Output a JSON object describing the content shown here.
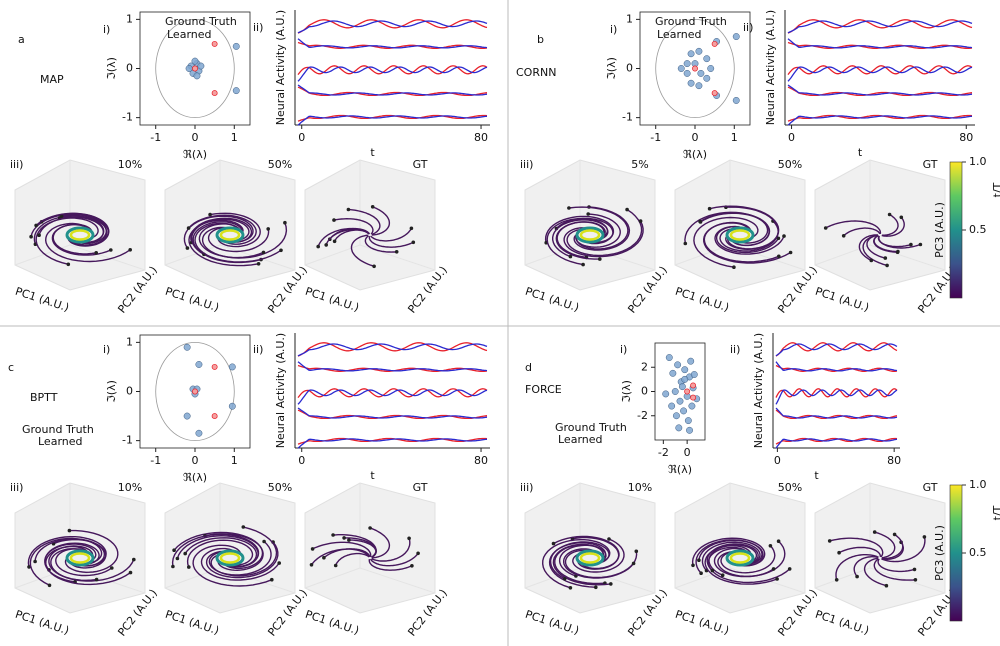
{
  "panels": [
    {
      "label": "a",
      "method": "MAP",
      "eigen": {
        "tag": "i)",
        "xlabel": "ℜ(λ)",
        "ylabel": "ℑ(λ)",
        "xlim": [
          -1.4,
          1.4
        ],
        "ylim": [
          -1.15,
          1.15
        ],
        "xticks": [
          -1,
          0,
          1
        ],
        "yticks": [
          -1,
          0,
          1
        ],
        "unit_circle_radius": 1,
        "legend": [
          "Ground Truth",
          "Learned"
        ],
        "ground_truth": {
          "x": [
            0,
            0.5,
            0.5
          ],
          "y": [
            0,
            0.5,
            -0.5
          ]
        },
        "learned": {
          "x": [
            -0.1,
            0.05,
            0.1,
            -0.05,
            0,
            0.15,
            -0.15,
            0.05,
            1.05,
            1.05
          ],
          "y": [
            0.05,
            0.1,
            -0.05,
            -0.1,
            0.15,
            0.05,
            0,
            -0.15,
            0.45,
            -0.45
          ]
        }
      },
      "activity": {
        "tag": "ii)",
        "ylabel": "Neural Activity (A.U.)",
        "xlabel": "t",
        "xlim": [
          -3,
          84
        ],
        "xticks": [
          0,
          80
        ]
      },
      "trajectories": {
        "tag": "iii)",
        "views": [
          "10%",
          "50%",
          "GT"
        ],
        "xlabel": "PC1 (A.U.)",
        "ylabel": "PC2 (A.U.)"
      }
    },
    {
      "label": "b",
      "method": "CORNN",
      "eigen": {
        "tag": "i)",
        "xlabel": "ℜ(λ)",
        "ylabel": "ℑ(λ)",
        "xlim": [
          -1.4,
          1.4
        ],
        "ylim": [
          -1.15,
          1.15
        ],
        "xticks": [
          -1,
          0,
          1
        ],
        "yticks": [
          -1,
          0,
          1
        ],
        "unit_circle_radius": 1,
        "legend": [
          "Ground Truth",
          "Learned"
        ],
        "ground_truth": {
          "x": [
            0,
            0.5,
            0.5
          ],
          "y": [
            0,
            0.5,
            -0.5
          ]
        },
        "learned": {
          "x": [
            -0.35,
            -0.2,
            -0.1,
            0.1,
            0.3,
            0.4,
            0.3,
            0.1,
            -0.1,
            -0.2,
            0,
            0.15,
            1.05,
            1.05,
            0.55,
            0.55
          ],
          "y": [
            0,
            0.1,
            0.3,
            0.35,
            0.2,
            0,
            -0.2,
            -0.35,
            -0.3,
            -0.1,
            0.1,
            -0.1,
            0.65,
            -0.65,
            0.55,
            -0.55
          ]
        }
      },
      "activity": {
        "tag": "ii)",
        "ylabel": "Neural Activity (A.U.)",
        "xlabel": "t",
        "xlim": [
          -3,
          84
        ],
        "xticks": [
          0,
          80
        ]
      },
      "trajectories": {
        "tag": "iii)",
        "views": [
          "5%",
          "50%",
          "GT"
        ],
        "xlabel": "PC1 (A.U.)",
        "ylabel": "PC2 (A.U.)"
      }
    },
    {
      "label": "c",
      "method": "BPTT",
      "eigen": {
        "tag": "i)",
        "xlabel": "ℜ(λ)",
        "ylabel": "ℑ(λ)",
        "xlim": [
          -1.4,
          1.4
        ],
        "ylim": [
          -1.15,
          1.15
        ],
        "xticks": [
          -1,
          0,
          1
        ],
        "yticks": [
          -1,
          0,
          1
        ],
        "unit_circle_radius": 1,
        "legend": [
          "Ground Truth",
          "Learned"
        ],
        "ground_truth": {
          "x": [
            0,
            0.5,
            0.5
          ],
          "y": [
            0,
            0.5,
            -0.5
          ]
        },
        "learned": {
          "x": [
            -0.05,
            0.05,
            0,
            -0.2,
            0.1,
            0.95,
            -0.2,
            0.1,
            0.95
          ],
          "y": [
            0.05,
            0.05,
            -0.05,
            0.9,
            0.55,
            0.5,
            -0.5,
            -0.85,
            -0.3
          ]
        }
      },
      "activity": {
        "tag": "ii)",
        "ylabel": "Neural Activity (A.U.)",
        "xlabel": "t",
        "xlim": [
          -3,
          84
        ],
        "xticks": [
          0,
          80
        ]
      },
      "trajectories": {
        "tag": "iii)",
        "views": [
          "10%",
          "50%",
          "GT"
        ],
        "xlabel": "PC1 (A.U.)",
        "ylabel": "PC2 (A.U.)"
      }
    },
    {
      "label": "d",
      "method": "FORCE",
      "eigen": {
        "tag": "i)",
        "xlabel": "ℜ(λ)",
        "ylabel": "ℑ(λ)",
        "xlim": [
          -2.7,
          1.5
        ],
        "ylim": [
          -4,
          4
        ],
        "xticks": [
          -2,
          0
        ],
        "yticks": [
          -2,
          0,
          2
        ],
        "legend": [
          "Ground Truth",
          "Learned"
        ],
        "ground_truth": {
          "x": [
            0.5,
            0.5,
            0
          ],
          "y": [
            0.5,
            -0.5,
            0
          ]
        },
        "learned": {
          "x": [
            -1.5,
            -1.2,
            -0.8,
            -0.5,
            -0.2,
            0.2,
            0.5,
            0.8,
            -1,
            -0.6,
            -0.3,
            0.1,
            0.4,
            -0.9,
            -0.4,
            0,
            0.3,
            -1.8,
            -0.7,
            0.2,
            -0.2,
            -1.3,
            0.6
          ],
          "y": [
            2.8,
            1.5,
            2.2,
            0.8,
            1.8,
            1.2,
            0.3,
            -0.6,
            0,
            -0.8,
            -1.6,
            -2.4,
            -1.2,
            -2,
            0.4,
            -0.4,
            2.5,
            -0.2,
            -3,
            -3.2,
            1,
            -1.2,
            1.4
          ]
        }
      },
      "activity": {
        "tag": "ii)",
        "ylabel": "Neural Activity (A.U.)",
        "xlabel": "t",
        "xlim": [
          -3,
          84
        ],
        "xticks": [
          0,
          80
        ]
      },
      "trajectories": {
        "tag": "iii)",
        "views": [
          "10%",
          "50%",
          "GT"
        ],
        "xlabel": "PC1 (A.U.)",
        "ylabel": "PC2 (A.U.)"
      }
    }
  ],
  "colorbar": {
    "label": "PC3 (A.U.)",
    "ticklabel": "t/T",
    "clim": [
      0,
      1
    ],
    "ticks": [
      {
        "value": 1,
        "label": "1.0"
      },
      {
        "value": 0.5,
        "label": "0.5"
      }
    ]
  }
}
